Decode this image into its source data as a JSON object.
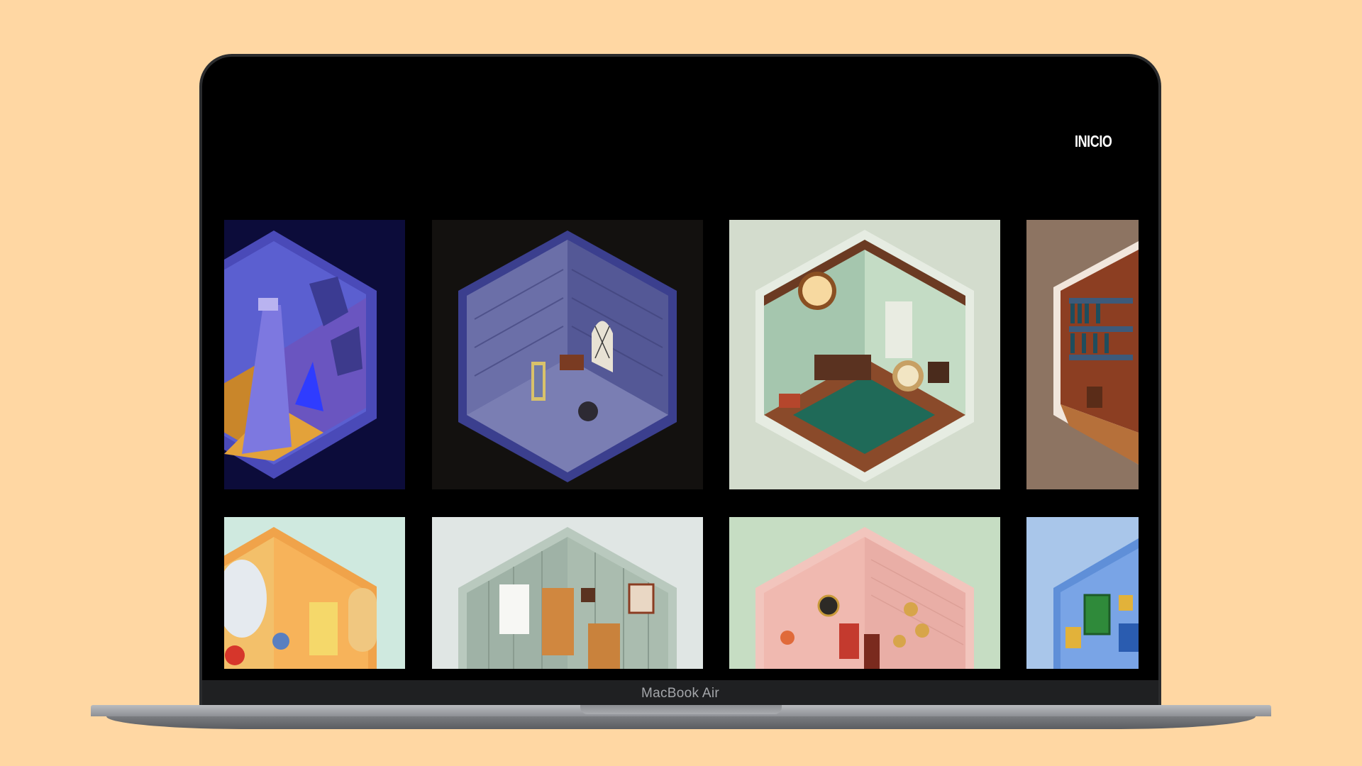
{
  "laptop": {
    "model_label": "MacBook Air"
  },
  "site": {
    "nav": {
      "home_label": "INICIO"
    },
    "gallery": {
      "tiles": [
        {
          "theme": "treasure-cave",
          "bg": "#0c0c3a"
        },
        {
          "theme": "dungeon-mirror",
          "bg": "#13110f"
        },
        {
          "theme": "study-room",
          "bg": "#d3dccd"
        },
        {
          "theme": "library",
          "bg": "#8d7462"
        },
        {
          "theme": "orange-room",
          "bg": "#cfe9df"
        },
        {
          "theme": "grey-room",
          "bg": "#e0e6e4"
        },
        {
          "theme": "pink-room",
          "bg": "#c6ddc3"
        },
        {
          "theme": "blue-room",
          "bg": "#a9c6ea"
        }
      ]
    }
  },
  "colors": {
    "page_bg": "#FFD7A3",
    "screen_bg": "#000000",
    "laptop_frame": "#2b2c2e"
  }
}
